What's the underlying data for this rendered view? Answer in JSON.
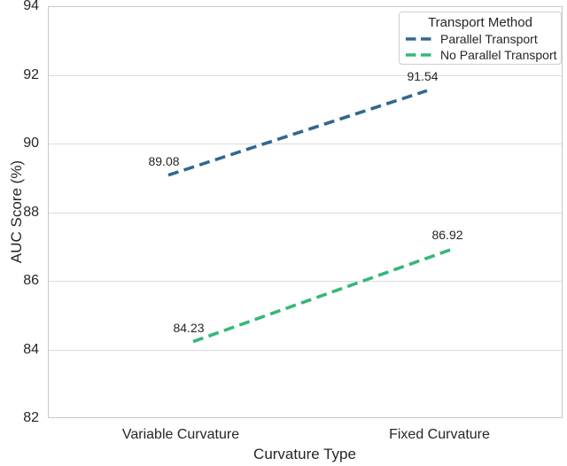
{
  "figure": {
    "background": "#ffffff",
    "plot_border_color": "#c8c8c8",
    "grid_color": "#dcdcdc",
    "text_color": "#262626"
  },
  "chart_data": {
    "type": "line",
    "title": "",
    "xlabel": "Curvature Type",
    "ylabel": "AUC Score (%)",
    "categories": [
      "Variable Curvature",
      "Fixed Curvature"
    ],
    "ylim": [
      82,
      94
    ],
    "yticks": [
      82,
      84,
      86,
      88,
      90,
      92,
      94
    ],
    "grid": "horizontal",
    "line_style": "dashed",
    "legend": {
      "title": "Transport Method",
      "position": "upper-right"
    },
    "series": [
      {
        "name": "Parallel Transport",
        "values": [
          89.08,
          91.54
        ],
        "point_labels": [
          "89.08",
          "91.54"
        ],
        "color": "#31688e"
      },
      {
        "name": "No Parallel Transport",
        "values": [
          84.23,
          86.92
        ],
        "point_labels": [
          "84.23",
          "86.92"
        ],
        "color": "#35b779"
      }
    ]
  }
}
